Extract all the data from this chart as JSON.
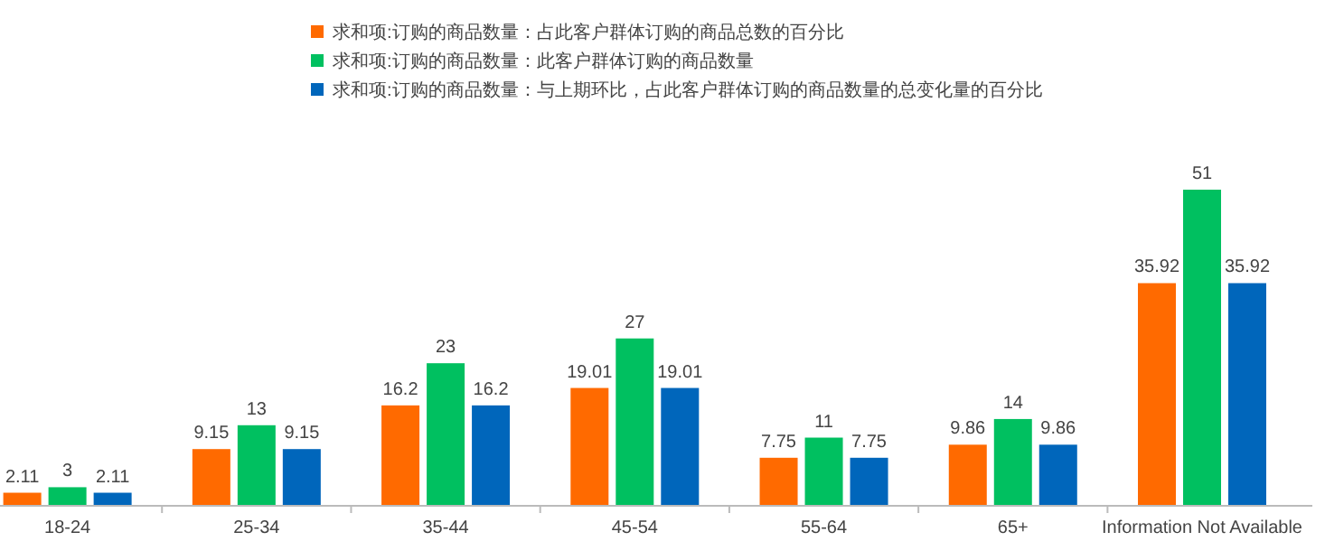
{
  "chart_data": {
    "type": "bar",
    "categories": [
      "18-24",
      "25-34",
      "35-44",
      "45-54",
      "55-64",
      "65+",
      "Information Not Available"
    ],
    "series": [
      {
        "name": "求和项:订购的商品数量：占此客户群体订购的商品总数的百分比",
        "color": "#ff6a00",
        "values": [
          2.11,
          9.15,
          16.2,
          19.01,
          7.75,
          9.86,
          35.92
        ]
      },
      {
        "name": "求和项:订购的商品数量：此客户群体订购的商品数量",
        "color": "#00c060",
        "values": [
          3,
          13,
          23,
          27,
          11,
          14,
          51
        ]
      },
      {
        "name": "求和项:订购的商品数量：与上期环比，占此客户群体订购的商品数量的总变化量的百分比",
        "color": "#0066bb",
        "values": [
          2.11,
          9.15,
          16.2,
          19.01,
          7.75,
          9.86,
          35.92
        ]
      }
    ],
    "data_labels": true,
    "legend": "top",
    "grid": false
  }
}
